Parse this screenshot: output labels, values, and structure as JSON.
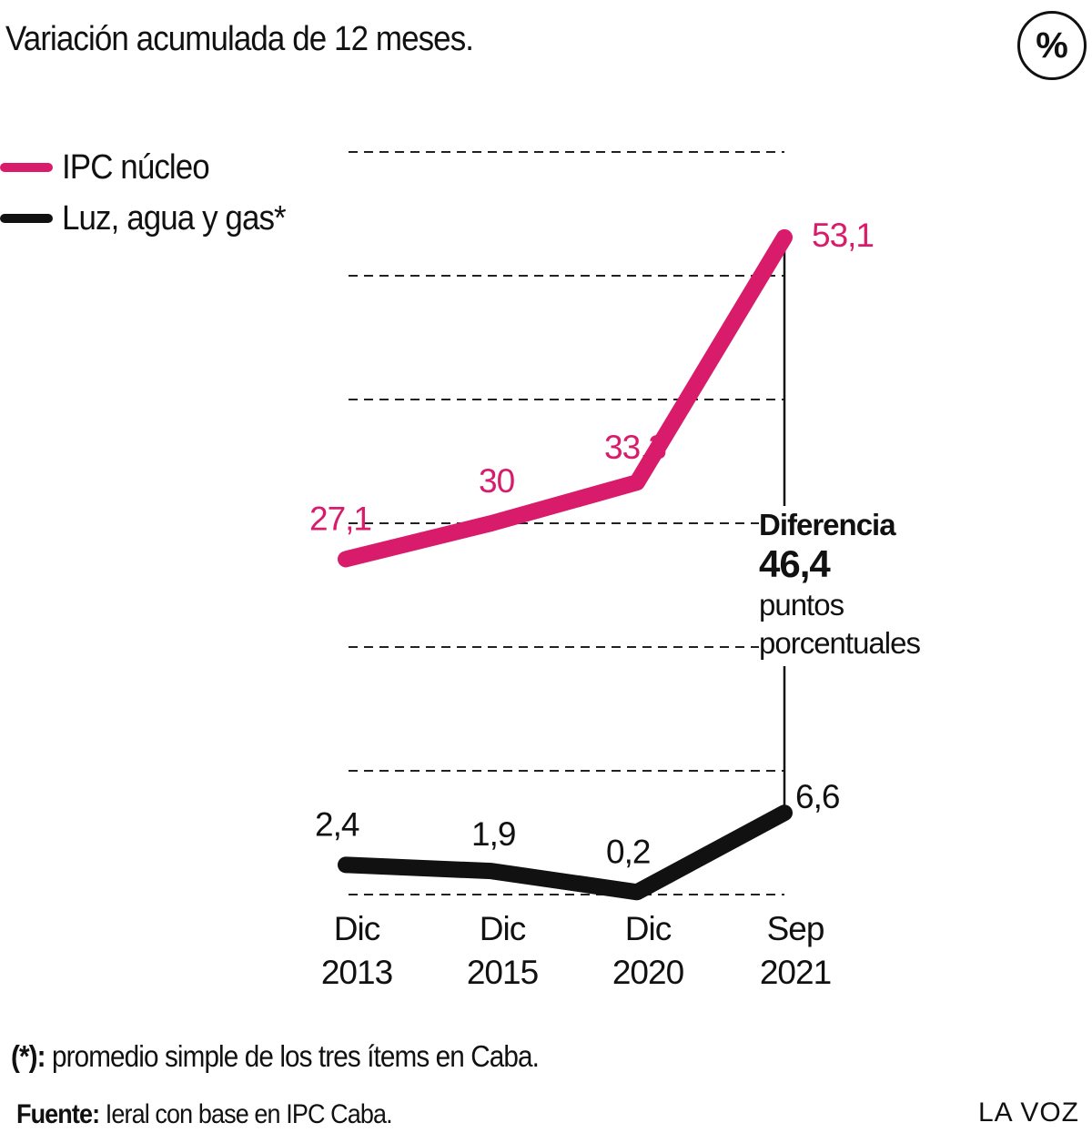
{
  "subtitle": "Variación acumulada de 12 meses.",
  "unit_badge": "%",
  "legend": [
    {
      "label": "IPC núcleo",
      "color": "#d81b6a"
    },
    {
      "label": "Luz, agua y gas*",
      "color": "#111111"
    }
  ],
  "annotation": {
    "title": "Diferencia",
    "value": "46,4",
    "unit_line1": "puntos",
    "unit_line2": "porcentuales"
  },
  "footnote": {
    "marker": "(*):",
    "text": " promedio simple de los tres ítems en Caba."
  },
  "source": {
    "label": "Fuente:",
    "text": " Ieral con base en IPC Caba."
  },
  "brand": "LA VOZ",
  "chart_data": {
    "type": "line",
    "categories": [
      [
        "Dic",
        "2013"
      ],
      [
        "Dic",
        "2015"
      ],
      [
        "Dic",
        "2020"
      ],
      [
        "Sep",
        "2021"
      ]
    ],
    "series": [
      {
        "name": "IPC núcleo",
        "color": "#d81b6a",
        "values": [
          27.1,
          30,
          33.3,
          53.1
        ],
        "labels": [
          "27,1",
          "30",
          "33,3",
          "53,1"
        ]
      },
      {
        "name": "Luz, agua y gas*",
        "color": "#111111",
        "values": [
          2.4,
          1.9,
          0.2,
          6.6
        ],
        "labels": [
          "2,4",
          "1,9",
          "0,2",
          "6,6"
        ]
      }
    ],
    "ylim": [
      0,
      60
    ],
    "grid": true,
    "legend_position": "top-left"
  }
}
